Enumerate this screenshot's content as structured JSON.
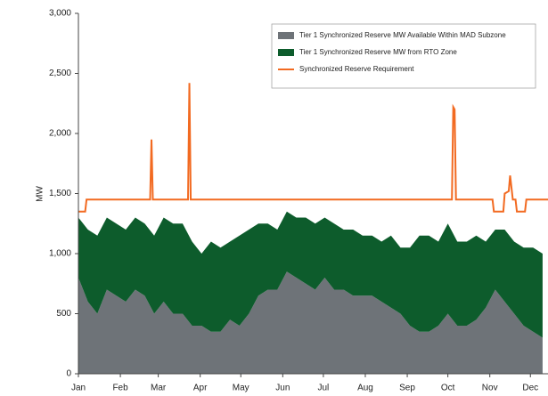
{
  "chart_data": {
    "type": "stacked-area-line",
    "y_label": "MW",
    "x": [
      1,
      8,
      15,
      22,
      29,
      36,
      43,
      50,
      57,
      64,
      71,
      78,
      85,
      92,
      99,
      106,
      113,
      120,
      127,
      134,
      141,
      148,
      155,
      162,
      169,
      176,
      183,
      190,
      197,
      204,
      211,
      218,
      225,
      232,
      239,
      246,
      253,
      260,
      267,
      274,
      281,
      288,
      295,
      302,
      309,
      316,
      323,
      330,
      337,
      344
    ],
    "series": [
      {
        "name": "Tier 1 Synchronized Reserve MW Available Within MAD Subzone",
        "color": "#6e7378",
        "values": [
          800,
          600,
          500,
          700,
          650,
          600,
          700,
          650,
          500,
          600,
          500,
          500,
          400,
          400,
          350,
          350,
          450,
          400,
          500,
          650,
          700,
          700,
          850,
          800,
          750,
          700,
          800,
          700,
          700,
          650,
          650,
          650,
          600,
          550,
          500,
          400,
          350,
          350,
          400,
          500,
          400,
          400,
          450,
          550,
          700,
          600,
          500,
          400,
          350,
          300
        ]
      },
      {
        "name": "Tier 1 Synchronized Reserve MW from RTO Zone",
        "color": "#0d5c2c",
        "values": [
          500,
          600,
          650,
          600,
          600,
          600,
          600,
          600,
          650,
          700,
          750,
          750,
          700,
          600,
          750,
          700,
          650,
          750,
          700,
          600,
          550,
          500,
          500,
          500,
          550,
          550,
          500,
          550,
          500,
          550,
          500,
          500,
          500,
          600,
          550,
          650,
          800,
          800,
          700,
          750,
          700,
          700,
          700,
          550,
          500,
          600,
          600,
          650,
          700,
          700
        ]
      },
      {
        "name": "Synchronized Reserve Requirement",
        "color": "#f26a21",
        "kind": "line",
        "x": [
          1,
          6,
          7,
          54,
          55,
          56,
          57,
          82,
          83,
          84,
          85,
          277,
          278,
          279,
          280,
          307,
          308,
          315,
          316,
          319,
          320,
          321,
          322,
          324,
          325,
          331,
          332,
          348
        ],
        "values": [
          1350,
          1350,
          1450,
          1450,
          1950,
          1450,
          1450,
          1450,
          2420,
          1450,
          1450,
          1450,
          2220,
          2200,
          1450,
          1450,
          1350,
          1350,
          1500,
          1520,
          1650,
          1550,
          1450,
          1450,
          1350,
          1350,
          1450,
          1450
        ]
      }
    ],
    "xlim": [
      1,
      348
    ],
    "xticks": [
      {
        "value": 1,
        "label": "Jan"
      },
      {
        "value": 32,
        "label": "Feb"
      },
      {
        "value": 60,
        "label": "Mar"
      },
      {
        "value": 91,
        "label": "Apr"
      },
      {
        "value": 121,
        "label": "May"
      },
      {
        "value": 152,
        "label": "Jun"
      },
      {
        "value": 182,
        "label": "Jul"
      },
      {
        "value": 213,
        "label": "Aug"
      },
      {
        "value": 244,
        "label": "Sep"
      },
      {
        "value": 274,
        "label": "Oct"
      },
      {
        "value": 305,
        "label": "Nov"
      },
      {
        "value": 335,
        "label": "Dec"
      }
    ],
    "ylim": [
      0,
      3000
    ],
    "yticks": [
      0,
      500,
      {
        "value": 1000,
        "label": "1,000"
      },
      {
        "value": 1500,
        "label": "1,500"
      },
      {
        "value": 2000,
        "label": "2,000"
      },
      {
        "value": 2500,
        "label": "2,500"
      },
      {
        "value": 3000,
        "label": "3,000"
      }
    ],
    "legend": "upper right"
  }
}
